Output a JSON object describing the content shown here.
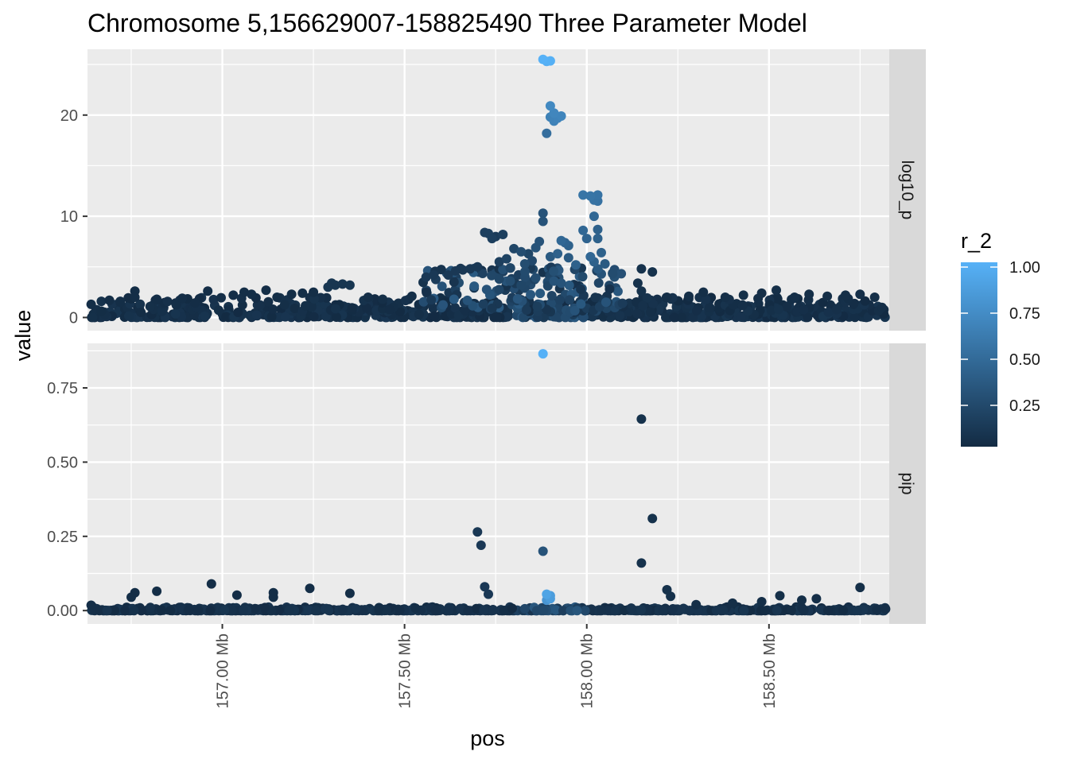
{
  "chart_data": {
    "type": "scatter",
    "title": "Chromosome 5,156629007-158825490 Three Parameter Model",
    "xlabel": "pos",
    "ylabel": "value",
    "x_unit": "Mb",
    "xlim": [
      156.63,
      158.83
    ],
    "x_ticks": [
      157.0,
      157.5,
      158.0,
      158.5
    ],
    "x_tick_labels": [
      "157.00 Mb",
      "157.50 Mb",
      "158.00 Mb",
      "158.50 Mb"
    ],
    "grid": true,
    "legend": {
      "title": "r_2",
      "position": "right",
      "type": "colorbar",
      "range": [
        0,
        1
      ],
      "ticks": [
        0.25,
        0.5,
        0.75,
        1.0
      ],
      "tick_labels": [
        "0.25",
        "0.50",
        "0.75",
        "1.00"
      ],
      "color_low": "#132b43",
      "color_high": "#56b1f7"
    },
    "facets": [
      {
        "name": "log10_p",
        "ylim": [
          -1.3,
          26.5
        ],
        "y_ticks": [
          0,
          10,
          20
        ],
        "y_tick_labels": [
          "0",
          "10",
          "20"
        ],
        "points": [
          [
            157.88,
            25.5,
            1.0
          ],
          [
            157.89,
            25.3,
            0.98
          ],
          [
            157.9,
            25.35,
            0.99
          ],
          [
            157.9,
            20.9,
            0.7
          ],
          [
            157.91,
            20.2,
            0.68
          ],
          [
            157.92,
            19.7,
            0.66
          ],
          [
            157.91,
            19.4,
            0.65
          ],
          [
            157.93,
            19.9,
            0.67
          ],
          [
            157.9,
            19.8,
            0.64
          ],
          [
            157.89,
            18.2,
            0.5
          ],
          [
            157.99,
            12.1,
            0.55
          ],
          [
            158.01,
            12.0,
            0.55
          ],
          [
            158.03,
            12.1,
            0.54
          ],
          [
            158.02,
            11.6,
            0.53
          ],
          [
            158.03,
            11.5,
            0.52
          ],
          [
            157.88,
            10.3,
            0.3
          ],
          [
            157.88,
            9.5,
            0.3
          ],
          [
            158.02,
            10.0,
            0.45
          ],
          [
            157.99,
            8.6,
            0.45
          ],
          [
            158.03,
            8.7,
            0.4
          ],
          [
            158.0,
            7.8,
            0.42
          ],
          [
            158.03,
            7.8,
            0.4
          ],
          [
            157.93,
            7.6,
            0.45
          ],
          [
            157.94,
            7.4,
            0.42
          ],
          [
            157.95,
            7.1,
            0.4
          ],
          [
            157.72,
            8.4,
            0.15
          ],
          [
            157.73,
            8.3,
            0.15
          ],
          [
            157.74,
            7.8,
            0.15
          ],
          [
            157.75,
            8.0,
            0.12
          ],
          [
            157.77,
            8.2,
            0.15
          ],
          [
            157.8,
            6.8,
            0.2
          ],
          [
            157.82,
            6.5,
            0.25
          ],
          [
            157.84,
            6.3,
            0.2
          ],
          [
            157.86,
            6.9,
            0.3
          ],
          [
            157.87,
            7.5,
            0.3
          ],
          [
            157.9,
            6.0,
            0.35
          ],
          [
            157.92,
            6.3,
            0.4
          ],
          [
            157.95,
            5.9,
            0.35
          ],
          [
            157.97,
            5.2,
            0.4
          ],
          [
            158.01,
            6.0,
            0.45
          ],
          [
            158.02,
            5.5,
            0.4
          ],
          [
            158.04,
            6.4,
            0.4
          ],
          [
            158.05,
            5.3,
            0.35
          ],
          [
            158.03,
            4.8,
            0.35
          ],
          [
            158.04,
            4.3,
            0.3
          ],
          [
            157.7,
            5.0,
            0.1
          ],
          [
            157.68,
            4.8,
            0.1
          ],
          [
            157.66,
            4.7,
            0.1
          ],
          [
            157.64,
            4.6,
            0.1
          ],
          [
            157.62,
            4.2,
            0.1
          ],
          [
            157.58,
            4.2,
            0.1
          ],
          [
            157.76,
            5.5,
            0.15
          ],
          [
            157.78,
            5.8,
            0.18
          ],
          [
            157.79,
            4.9,
            0.2
          ],
          [
            157.83,
            5.3,
            0.25
          ],
          [
            157.85,
            5.6,
            0.22
          ],
          [
            157.76,
            3.8,
            0.2
          ],
          [
            157.79,
            3.6,
            0.25
          ],
          [
            157.82,
            3.2,
            0.2
          ],
          [
            157.86,
            3.9,
            0.25
          ],
          [
            157.91,
            3.6,
            0.3
          ],
          [
            157.93,
            3.4,
            0.3
          ],
          [
            158.15,
            4.8,
            0.05
          ],
          [
            158.18,
            4.5,
            0.05
          ],
          [
            158.14,
            3.4,
            0.05
          ],
          [
            158.15,
            2.6,
            0.05
          ],
          [
            157.31,
            3.2,
            0.08
          ],
          [
            157.3,
            3.4,
            0.08
          ],
          [
            157.33,
            3.3,
            0.08
          ],
          [
            157.35,
            3.2,
            0.08
          ],
          [
            157.29,
            3.0,
            0.08
          ],
          [
            156.64,
            1.3,
            0.02
          ],
          [
            156.69,
            1.7,
            0.02
          ],
          [
            156.72,
            1.5,
            0.02
          ],
          [
            156.76,
            2.6,
            0.02
          ],
          [
            156.76,
            2.0,
            0.02
          ],
          [
            156.82,
            1.8,
            0.02
          ],
          [
            156.89,
            1.9,
            0.02
          ],
          [
            156.96,
            2.6,
            0.02
          ],
          [
            157.03,
            2.2,
            0.02
          ],
          [
            157.06,
            2.5,
            0.02
          ],
          [
            157.08,
            2.3,
            0.02
          ],
          [
            157.12,
            2.7,
            0.02
          ],
          [
            157.15,
            2.0,
            0.02
          ],
          [
            157.19,
            2.3,
            0.02
          ],
          [
            157.22,
            2.4,
            0.02
          ],
          [
            157.25,
            2.5,
            0.02
          ],
          [
            157.4,
            2.0,
            0.03
          ],
          [
            157.44,
            1.8,
            0.03
          ],
          [
            157.52,
            2.1,
            0.03
          ],
          [
            157.56,
            2.5,
            0.04
          ],
          [
            158.22,
            2.0,
            0.03
          ],
          [
            158.28,
            2.1,
            0.03
          ],
          [
            158.32,
            2.5,
            0.03
          ],
          [
            158.38,
            2.0,
            0.03
          ],
          [
            158.43,
            2.2,
            0.03
          ],
          [
            158.48,
            2.4,
            0.03
          ],
          [
            158.52,
            2.7,
            0.03
          ],
          [
            158.57,
            2.0,
            0.03
          ],
          [
            158.61,
            2.3,
            0.03
          ],
          [
            158.66,
            2.1,
            0.03
          ],
          [
            158.71,
            2.2,
            0.03
          ],
          [
            158.75,
            2.3,
            0.03
          ],
          [
            158.79,
            2.0,
            0.03
          ],
          [
            158.81,
            1.0,
            0.03
          ]
        ]
      },
      {
        "name": "pip",
        "ylim": [
          -0.045,
          0.9
        ],
        "y_ticks": [
          0,
          0.25,
          0.5,
          0.75
        ],
        "y_tick_labels": [
          "0.00",
          "0.25",
          "0.50",
          "0.75"
        ],
        "points": [
          [
            157.88,
            0.865,
            1.0
          ],
          [
            158.15,
            0.645,
            0.05
          ],
          [
            158.18,
            0.31,
            0.05
          ],
          [
            158.15,
            0.16,
            0.05
          ],
          [
            157.7,
            0.265,
            0.1
          ],
          [
            157.71,
            0.22,
            0.1
          ],
          [
            157.88,
            0.2,
            0.3
          ],
          [
            157.72,
            0.08,
            0.1
          ],
          [
            157.73,
            0.055,
            0.1
          ],
          [
            158.22,
            0.07,
            0.05
          ],
          [
            158.23,
            0.048,
            0.05
          ],
          [
            157.89,
            0.055,
            0.9
          ],
          [
            157.9,
            0.05,
            0.85
          ],
          [
            157.89,
            0.035,
            0.8
          ],
          [
            157.9,
            0.04,
            0.85
          ],
          [
            156.64,
            0.018,
            0.02
          ],
          [
            156.76,
            0.06,
            0.02
          ],
          [
            156.75,
            0.045,
            0.02
          ],
          [
            156.82,
            0.065,
            0.02
          ],
          [
            156.97,
            0.09,
            0.02
          ],
          [
            157.04,
            0.052,
            0.02
          ],
          [
            157.14,
            0.06,
            0.02
          ],
          [
            157.14,
            0.045,
            0.02
          ],
          [
            157.24,
            0.075,
            0.02
          ],
          [
            157.35,
            0.058,
            0.02
          ],
          [
            157.43,
            0.01,
            0.02
          ],
          [
            157.53,
            0.008,
            0.02
          ],
          [
            158.53,
            0.05,
            0.03
          ],
          [
            158.59,
            0.035,
            0.03
          ],
          [
            158.63,
            0.04,
            0.03
          ],
          [
            158.48,
            0.03,
            0.03
          ],
          [
            158.75,
            0.078,
            0.03
          ],
          [
            158.82,
            0.005,
            0.03
          ],
          [
            158.3,
            0.02,
            0.03
          ],
          [
            158.4,
            0.025,
            0.03
          ]
        ]
      }
    ]
  }
}
